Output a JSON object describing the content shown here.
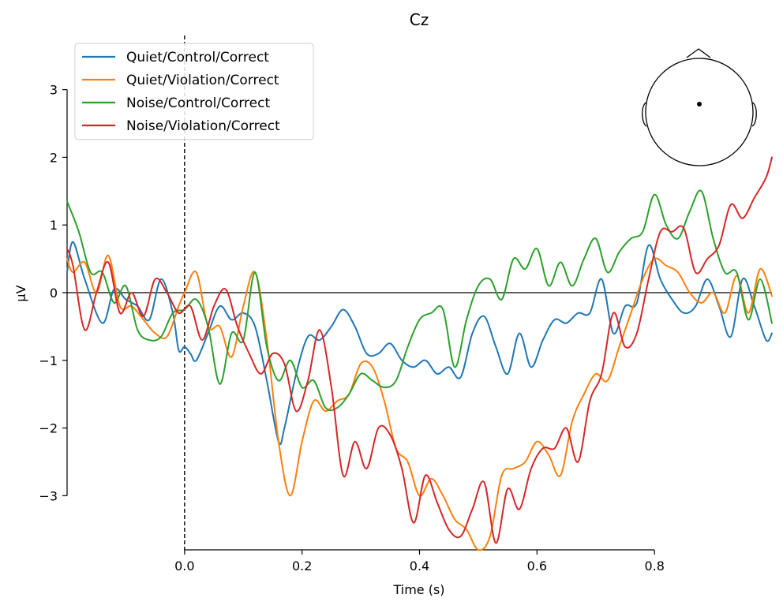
{
  "chart_data": {
    "type": "line",
    "title": "Cz",
    "xlabel": "Time (s)",
    "ylabel": "µV",
    "xlim": [
      -0.2,
      1.0
    ],
    "ylim": [
      -3.8,
      3.8
    ],
    "x_ticks": [
      0.0,
      0.2,
      0.4,
      0.6,
      0.8
    ],
    "x_tick_labels": [
      "0.0",
      "0.2",
      "0.4",
      "0.6",
      "0.8"
    ],
    "y_ticks": [
      -3,
      -2,
      -1,
      0,
      1,
      2,
      3
    ],
    "y_tick_labels": [
      "−3",
      "−2",
      "−1",
      "0",
      "1",
      "2",
      "3"
    ],
    "grid": false,
    "legend_position": "top-left",
    "stimulus_onset_line": 0.0,
    "zero_line": 0.0,
    "inset": "head-topomap-sensor-Cz",
    "series": [
      {
        "name": "Quiet/Control/Correct",
        "color": "#1f77b4",
        "x": [
          -0.2,
          -0.19,
          -0.17,
          -0.14,
          -0.12,
          -0.1,
          -0.08,
          -0.06,
          -0.04,
          -0.02,
          -0.01,
          0.0,
          0.01,
          0.02,
          0.04,
          0.06,
          0.08,
          0.1,
          0.12,
          0.14,
          0.16,
          0.17,
          0.19,
          0.21,
          0.23,
          0.25,
          0.27,
          0.29,
          0.31,
          0.33,
          0.35,
          0.37,
          0.39,
          0.41,
          0.43,
          0.45,
          0.47,
          0.49,
          0.51,
          0.53,
          0.55,
          0.57,
          0.59,
          0.61,
          0.63,
          0.65,
          0.67,
          0.69,
          0.71,
          0.73,
          0.75,
          0.77,
          0.79,
          0.81,
          0.83,
          0.85,
          0.87,
          0.89,
          0.91,
          0.93,
          0.95,
          0.97,
          0.99,
          1.0
        ],
        "values": [
          0.3,
          0.75,
          0.2,
          -0.45,
          0.05,
          -0.1,
          -0.2,
          -0.4,
          0.2,
          -0.3,
          -0.85,
          -0.8,
          -0.9,
          -1.0,
          -0.6,
          -0.2,
          -0.4,
          -0.3,
          -0.5,
          -1.3,
          -2.2,
          -2.0,
          -1.2,
          -0.65,
          -0.7,
          -0.5,
          -0.25,
          -0.5,
          -0.9,
          -0.9,
          -0.75,
          -1.0,
          -1.1,
          -1.0,
          -1.2,
          -1.1,
          -1.25,
          -0.6,
          -0.35,
          -0.8,
          -1.2,
          -0.6,
          -1.1,
          -0.7,
          -0.4,
          -0.45,
          -0.3,
          -0.3,
          0.2,
          -0.6,
          -0.2,
          -0.15,
          0.7,
          0.2,
          -0.1,
          -0.3,
          -0.2,
          0.2,
          -0.2,
          -0.65,
          0.2,
          -0.2,
          -0.7,
          -0.6
        ]
      },
      {
        "name": "Quiet/Violation/Correct",
        "color": "#ff7f0e",
        "x": [
          -0.2,
          -0.19,
          -0.17,
          -0.15,
          -0.13,
          -0.11,
          -0.09,
          -0.07,
          -0.05,
          -0.03,
          -0.01,
          0.0,
          0.02,
          0.04,
          0.06,
          0.08,
          0.1,
          0.12,
          0.14,
          0.16,
          0.18,
          0.2,
          0.22,
          0.24,
          0.26,
          0.28,
          0.3,
          0.32,
          0.34,
          0.36,
          0.38,
          0.4,
          0.42,
          0.44,
          0.46,
          0.48,
          0.5,
          0.52,
          0.54,
          0.56,
          0.58,
          0.6,
          0.62,
          0.64,
          0.66,
          0.68,
          0.7,
          0.72,
          0.74,
          0.76,
          0.78,
          0.8,
          0.82,
          0.84,
          0.86,
          0.88,
          0.9,
          0.92,
          0.94,
          0.96,
          0.98,
          1.0
        ],
        "values": [
          0.5,
          0.3,
          0.45,
          0.0,
          0.55,
          -0.2,
          -0.2,
          -0.4,
          -0.6,
          -0.65,
          -0.2,
          0.0,
          0.3,
          -0.5,
          -0.5,
          -0.95,
          -0.2,
          0.3,
          -0.7,
          -2.2,
          -3.0,
          -2.2,
          -1.6,
          -1.75,
          -1.6,
          -1.5,
          -1.05,
          -1.1,
          -1.6,
          -2.3,
          -2.5,
          -3.0,
          -2.75,
          -3.0,
          -3.35,
          -3.5,
          -3.8,
          -3.6,
          -2.7,
          -2.6,
          -2.5,
          -2.2,
          -2.4,
          -2.7,
          -1.9,
          -1.5,
          -1.2,
          -1.3,
          -0.8,
          -0.3,
          0.2,
          0.5,
          0.4,
          0.3,
          0.0,
          -0.15,
          0.0,
          -0.3,
          0.25,
          -0.3,
          0.35,
          -0.05
        ]
      },
      {
        "name": "Noise/Control/Correct",
        "color": "#2ca02c",
        "x": [
          -0.2,
          -0.18,
          -0.16,
          -0.14,
          -0.12,
          -0.1,
          -0.08,
          -0.06,
          -0.04,
          -0.02,
          0.0,
          0.02,
          0.04,
          0.06,
          0.08,
          0.1,
          0.12,
          0.14,
          0.16,
          0.18,
          0.2,
          0.22,
          0.24,
          0.26,
          0.28,
          0.3,
          0.32,
          0.34,
          0.36,
          0.38,
          0.4,
          0.42,
          0.44,
          0.46,
          0.48,
          0.5,
          0.52,
          0.54,
          0.56,
          0.58,
          0.6,
          0.62,
          0.64,
          0.66,
          0.68,
          0.7,
          0.72,
          0.74,
          0.76,
          0.78,
          0.8,
          0.82,
          0.84,
          0.86,
          0.88,
          0.9,
          0.92,
          0.94,
          0.96,
          0.98,
          1.0
        ],
        "values": [
          1.35,
          0.9,
          0.3,
          0.3,
          -0.15,
          0.1,
          -0.55,
          -0.7,
          -0.65,
          -0.3,
          -0.25,
          -0.1,
          -0.5,
          -1.35,
          -0.6,
          -0.7,
          0.3,
          -0.8,
          -1.3,
          -1.0,
          -1.4,
          -1.3,
          -1.7,
          -1.7,
          -1.5,
          -1.2,
          -1.3,
          -1.4,
          -1.3,
          -0.8,
          -0.4,
          -0.3,
          -0.25,
          -1.1,
          -0.4,
          0.1,
          0.2,
          -0.1,
          0.5,
          0.35,
          0.65,
          0.1,
          0.45,
          0.1,
          0.5,
          0.8,
          0.3,
          0.6,
          0.8,
          0.9,
          1.45,
          1.0,
          0.8,
          1.2,
          1.5,
          0.8,
          0.3,
          0.3,
          -0.4,
          0.2,
          -0.45
        ]
      },
      {
        "name": "Noise/Violation/Correct",
        "color": "#d62728",
        "x": [
          -0.2,
          -0.19,
          -0.17,
          -0.15,
          -0.13,
          -0.11,
          -0.09,
          -0.07,
          -0.05,
          -0.03,
          -0.01,
          0.01,
          0.03,
          0.05,
          0.07,
          0.09,
          0.11,
          0.13,
          0.15,
          0.17,
          0.19,
          0.21,
          0.23,
          0.25,
          0.27,
          0.29,
          0.31,
          0.33,
          0.35,
          0.37,
          0.39,
          0.41,
          0.43,
          0.45,
          0.47,
          0.49,
          0.51,
          0.53,
          0.55,
          0.57,
          0.59,
          0.61,
          0.63,
          0.65,
          0.67,
          0.69,
          0.71,
          0.73,
          0.75,
          0.77,
          0.79,
          0.81,
          0.83,
          0.85,
          0.87,
          0.89,
          0.91,
          0.93,
          0.95,
          0.97,
          0.99,
          1.0
        ],
        "values": [
          0.65,
          0.4,
          -0.55,
          0.0,
          0.45,
          -0.3,
          0.0,
          -0.35,
          0.2,
          0.0,
          -0.3,
          -0.2,
          -0.7,
          -0.2,
          0.05,
          -0.5,
          -0.9,
          -1.2,
          -0.9,
          -1.05,
          -1.75,
          -1.3,
          -0.55,
          -1.4,
          -2.7,
          -2.2,
          -2.6,
          -2.0,
          -2.1,
          -2.6,
          -3.4,
          -2.7,
          -3.1,
          -3.5,
          -3.6,
          -3.2,
          -2.8,
          -3.7,
          -2.9,
          -3.2,
          -2.6,
          -2.3,
          -2.3,
          -2.0,
          -2.5,
          -1.6,
          -1.2,
          -0.3,
          -0.8,
          -0.6,
          0.2,
          0.9,
          0.9,
          0.95,
          0.3,
          0.5,
          0.7,
          1.3,
          1.1,
          1.4,
          1.7,
          2.0
        ]
      }
    ]
  }
}
